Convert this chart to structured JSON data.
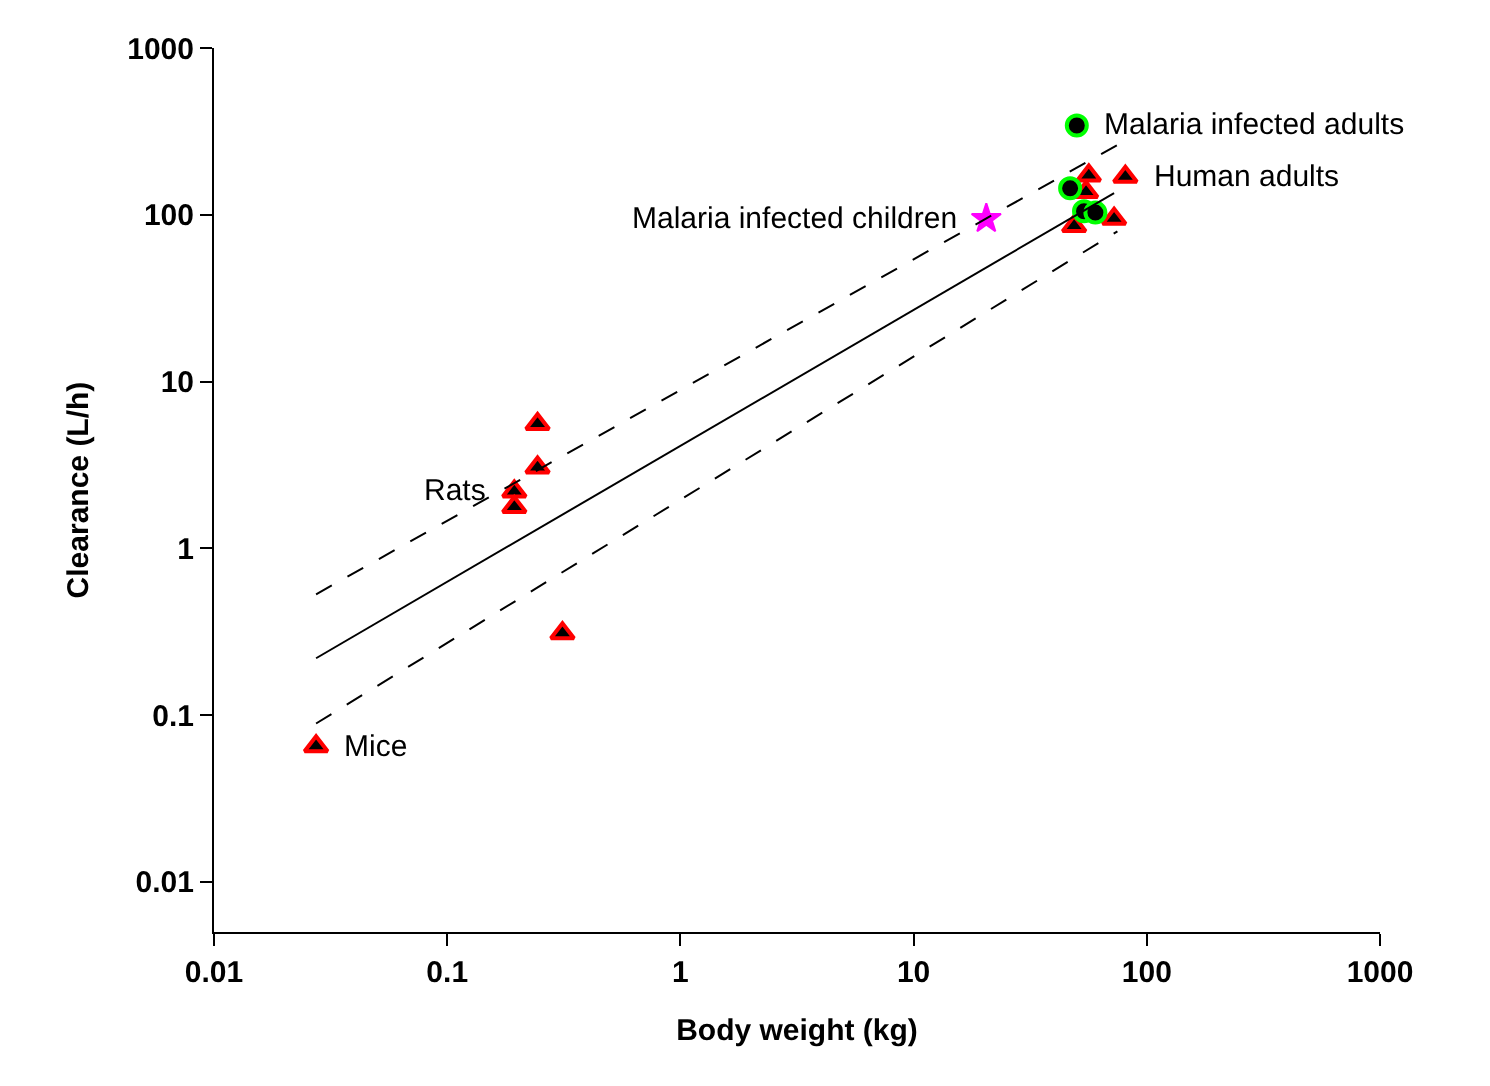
{
  "chart_data": {
    "type": "scatter",
    "xlabel": "Body weight (kg)",
    "ylabel": "Clearance (L/h)",
    "log": "xy",
    "xlim": [
      0.01,
      1000
    ],
    "xticks": [
      0.01,
      0.1,
      1,
      10,
      100,
      1000
    ],
    "ylim": [
      0.005,
      1000
    ],
    "yticks": [
      0.01,
      0.1,
      1,
      10,
      100,
      1000
    ],
    "series": [
      {
        "marker": "triangle",
        "color": "#000000",
        "x": [
          0.0274,
          0.244,
          0.244,
          0.194,
          0.194,
          0.312,
          56.4,
          54.9,
          80.9,
          48.8,
          72.4
        ],
        "values": [
          0.065,
          5.56,
          3.05,
          2.19,
          1.77,
          0.309,
          172,
          137,
          169,
          85.5,
          94.6
        ]
      },
      {
        "marker": "circle",
        "color": "#000000",
        "x": [
          50.1,
          46.9,
          53.8,
          60.2
        ],
        "values": [
          343,
          144,
          105,
          103
        ]
      },
      {
        "marker": "star",
        "color": "#ff00ff",
        "x": [
          20.5
        ],
        "values": [
          94.6
        ]
      },
      {
        "type": "line",
        "line_style": "solid",
        "color": "#000000",
        "x": [
          0.0274,
          72.4
        ],
        "values": [
          0.219,
          135
        ]
      },
      {
        "type": "line",
        "line_style": "dashed",
        "color": "#000000",
        "x": [
          0.0274,
          74.8
        ],
        "values": [
          0.53,
          262
        ]
      },
      {
        "type": "line",
        "line_style": "dashed",
        "color": "#000000",
        "x": [
          0.0274,
          74.8
        ],
        "values": [
          0.089,
          79.5
        ]
      }
    ],
    "annotations": [
      {
        "text": "Malaria infected adults",
        "x": 50.1,
        "y": 343
      },
      {
        "text": "Human adults",
        "x": 80.9,
        "y": 169
      },
      {
        "text": "Malaria infected children",
        "x": 20.5,
        "y": 94.6
      },
      {
        "text": "Rats",
        "x": 0.194,
        "y": 2.19
      },
      {
        "text": "Mice",
        "x": 0.0274,
        "y": 0.065
      }
    ]
  }
}
